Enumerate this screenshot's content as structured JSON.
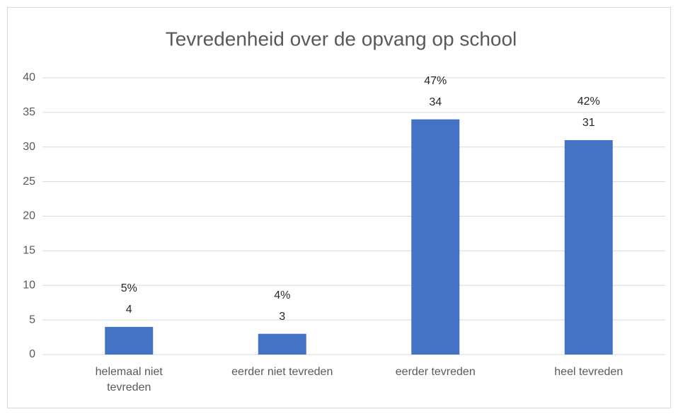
{
  "chart_data": {
    "type": "bar",
    "title": "Tevredenheid over de opvang op school",
    "categories": [
      "helemaal niet tevreden",
      "eerder niet tevreden",
      "eerder tevreden",
      "heel tevreden"
    ],
    "values": [
      4,
      3,
      34,
      31
    ],
    "percentage_labels": [
      "5%",
      "4%",
      "47%",
      "42%"
    ],
    "color": "#4472c4",
    "ylim": [
      0,
      40
    ],
    "yticks": [
      0,
      5,
      10,
      15,
      20,
      25,
      30,
      35,
      40
    ],
    "grid": true
  }
}
